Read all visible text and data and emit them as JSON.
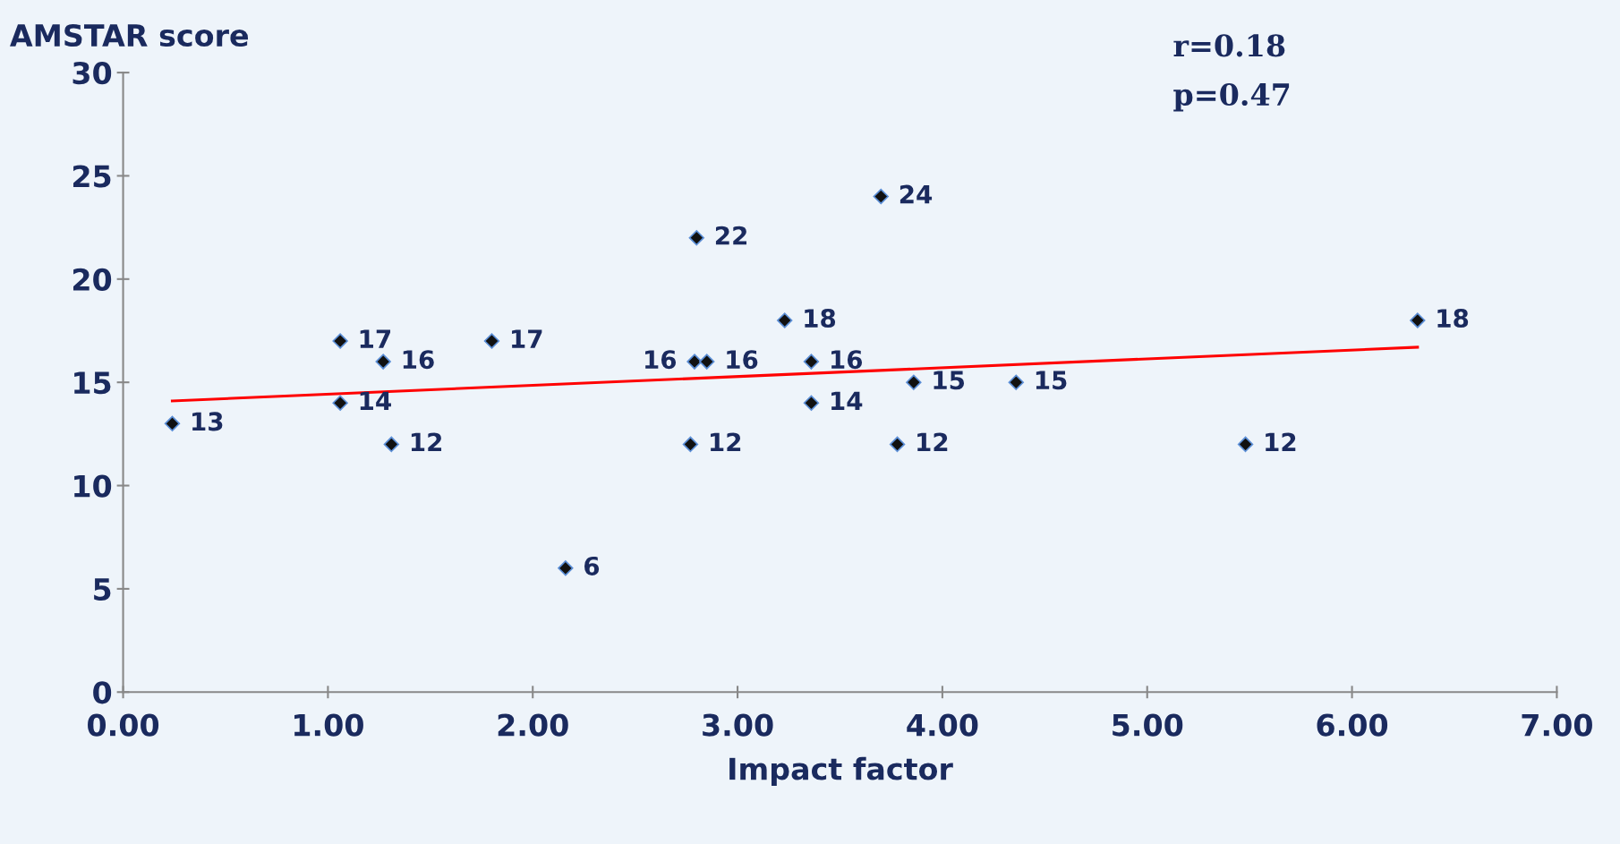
{
  "chart_data": {
    "type": "scatter",
    "xlabel": "Impact factor",
    "ylabel": "AMSTAR score",
    "annotations": [
      "r=0.18",
      "p=0.47"
    ],
    "series": [
      {
        "color": "#111111",
        "marker": "diamond",
        "data_labels": true,
        "x": [
          0.24,
          1.06,
          1.06,
          1.27,
          1.31,
          1.8,
          2.16,
          2.8,
          2.79,
          2.85,
          2.77,
          3.23,
          3.36,
          3.36,
          3.7,
          3.78,
          3.86,
          4.36,
          5.48,
          6.32
        ],
        "values": [
          13,
          17,
          14,
          16,
          12,
          17,
          6,
          22,
          16,
          16,
          12,
          18,
          16,
          14,
          24,
          12,
          15,
          15,
          12,
          18
        ]
      },
      {
        "type": "line",
        "color": "#ff0000",
        "x": [
          0.24,
          6.32
        ],
        "values": [
          14.1,
          16.7
        ]
      }
    ],
    "xlim": [
      0,
      7
    ],
    "xticks": [
      {
        "value": 0,
        "label": "0.00"
      },
      {
        "value": 1,
        "label": "1.00"
      },
      {
        "value": 2,
        "label": "2.00"
      },
      {
        "value": 3,
        "label": "3.00"
      },
      {
        "value": 4,
        "label": "4.00"
      },
      {
        "value": 5,
        "label": "5.00"
      },
      {
        "value": 6,
        "label": "6.00"
      },
      {
        "value": 7,
        "label": "7.00"
      }
    ],
    "ylim": [
      0,
      30
    ],
    "yticks": [
      0,
      5,
      10,
      15,
      20,
      25,
      30
    ],
    "grid": false,
    "legend": false
  }
}
